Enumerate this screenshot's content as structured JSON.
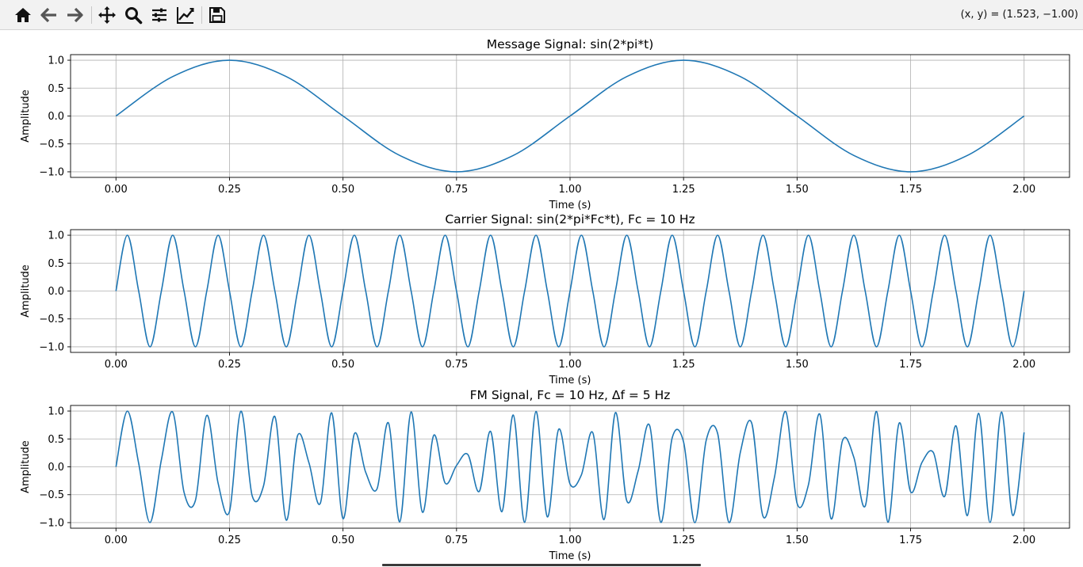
{
  "toolbar": {
    "buttons": [
      {
        "name": "home-icon",
        "tooltip": "Reset original view"
      },
      {
        "name": "back-icon",
        "tooltip": "Back to previous view"
      },
      {
        "name": "forward-icon",
        "tooltip": "Forward to next view"
      },
      {
        "name": "pan-icon",
        "tooltip": "Pan axes"
      },
      {
        "name": "zoom-icon",
        "tooltip": "Zoom to rectangle"
      },
      {
        "name": "subplots-icon",
        "tooltip": "Configure subplots"
      },
      {
        "name": "edit-axes-icon",
        "tooltip": "Edit axis, curve and image parameters"
      },
      {
        "name": "save-icon",
        "tooltip": "Save the figure"
      }
    ],
    "coords": "(x, y) = (1.523, −1.00)"
  },
  "chart_data": [
    {
      "type": "line",
      "title": "Message Signal: sin(2*pi*t)",
      "xlabel": "Time (s)",
      "ylabel": "Amplitude",
      "xlim": [
        -0.1,
        2.1
      ],
      "ylim": [
        -1.1,
        1.1
      ],
      "xticks": [
        "0.00",
        "0.25",
        "0.50",
        "0.75",
        "1.00",
        "1.25",
        "1.50",
        "1.75",
        "2.00"
      ],
      "yticks": [
        "1.0",
        "0.5",
        "0.0",
        "−0.5",
        "−1.0"
      ],
      "grid": true,
      "series": [
        {
          "color": "#1f77b4",
          "x": [
            0,
            0.125,
            0.25,
            0.375,
            0.5,
            0.625,
            0.75,
            0.875,
            1.0,
            1.125,
            1.25,
            1.375,
            1.5,
            1.625,
            1.75,
            1.875,
            2.0
          ],
          "values": [
            0,
            0.707,
            1.0,
            0.707,
            0,
            -0.707,
            -1.0,
            -0.707,
            0,
            0.707,
            1.0,
            0.707,
            0,
            -0.707,
            -1.0,
            -0.707,
            0
          ]
        }
      ]
    },
    {
      "type": "line",
      "title": "Carrier Signal: sin(2*pi*Fc*t), Fc = 10 Hz",
      "xlabel": "Time (s)",
      "ylabel": "Amplitude",
      "xlim": [
        -0.1,
        2.1
      ],
      "ylim": [
        -1.1,
        1.1
      ],
      "xticks": [
        "0.00",
        "0.25",
        "0.50",
        "0.75",
        "1.00",
        "1.25",
        "1.50",
        "1.75",
        "2.00"
      ],
      "yticks": [
        "1.0",
        "0.5",
        "0.0",
        "−0.5",
        "−1.0"
      ],
      "grid": true,
      "series": [
        {
          "color": "#1f77b4",
          "x": [
            0,
            0.025,
            0.05,
            0.075,
            0.1,
            0.125,
            0.15,
            0.175,
            0.2,
            0.225,
            0.25,
            0.275,
            0.3,
            0.325,
            0.35,
            0.375,
            0.4,
            0.425,
            0.45,
            0.475,
            0.5,
            0.525,
            0.55,
            0.575,
            0.6,
            0.625,
            0.65,
            0.675,
            0.7,
            0.725,
            0.75,
            0.775,
            0.8,
            0.825,
            0.85,
            0.875,
            0.9,
            0.925,
            0.95,
            0.975,
            1.0,
            1.025,
            1.05,
            1.075,
            1.1,
            1.125,
            1.15,
            1.175,
            1.2,
            1.225,
            1.25,
            1.275,
            1.3,
            1.325,
            1.35,
            1.375,
            1.4,
            1.425,
            1.45,
            1.475,
            1.5,
            1.525,
            1.55,
            1.575,
            1.6,
            1.625,
            1.65,
            1.675,
            1.7,
            1.725,
            1.75,
            1.775,
            1.8,
            1.825,
            1.85,
            1.875,
            1.9,
            1.925,
            1.95,
            1.975,
            2.0
          ],
          "values": [
            0,
            1,
            0,
            -1,
            0,
            1,
            0,
            -1,
            0,
            1,
            0,
            -1,
            0,
            1,
            0,
            -1,
            0,
            1,
            0,
            -1,
            0,
            1,
            0,
            -1,
            0,
            1,
            0,
            -1,
            0,
            1,
            0,
            -1,
            0,
            1,
            0,
            -1,
            0,
            1,
            0,
            -1,
            0,
            1,
            0,
            -1,
            0,
            1,
            0,
            -1,
            0,
            1,
            0,
            -1,
            0,
            1,
            0,
            -1,
            0,
            1,
            0,
            -1,
            0,
            1,
            0,
            -1,
            0,
            1,
            0,
            -1,
            0,
            1,
            0,
            -1,
            0,
            1,
            0,
            -1,
            0,
            1,
            0,
            -1,
            0
          ]
        }
      ]
    },
    {
      "type": "line",
      "title": "FM Signal, Fc = 10 Hz, Δf = 5 Hz",
      "xlabel": "Time (s)",
      "ylabel": "Amplitude",
      "xlim": [
        -0.1,
        2.1
      ],
      "ylim": [
        -1.1,
        1.1
      ],
      "xticks": [
        "0.00",
        "0.25",
        "0.50",
        "0.75",
        "1.00",
        "1.25",
        "1.50",
        "1.75",
        "2.00"
      ],
      "yticks": [
        "1.0",
        "0.5",
        "0.0",
        "−0.5",
        "−1.0"
      ],
      "grid": true,
      "series": [
        {
          "color": "#1f77b4",
          "x": [
            0,
            0.025,
            0.05,
            0.075,
            0.1,
            0.125,
            0.15,
            0.175,
            0.2,
            0.225,
            0.25,
            0.275,
            0.3,
            0.325,
            0.35,
            0.375,
            0.4,
            0.425,
            0.45,
            0.475,
            0.5,
            0.525,
            0.55,
            0.575,
            0.6,
            0.625,
            0.65,
            0.675,
            0.7,
            0.725,
            0.75,
            0.775,
            0.8,
            0.825,
            0.85,
            0.875,
            0.9,
            0.925,
            0.95,
            0.975,
            1.0,
            1.025,
            1.05,
            1.075,
            1.1,
            1.125,
            1.15,
            1.175,
            1.2,
            1.225,
            1.25,
            1.275,
            1.3,
            1.325,
            1.35,
            1.375,
            1.4,
            1.425,
            1.45,
            1.475,
            1.5,
            1.525,
            1.55,
            1.575,
            1.6,
            1.625,
            1.65,
            1.675,
            1.7,
            1.725,
            1.75,
            1.775,
            1.8,
            1.825,
            1.85,
            1.875,
            1.9,
            1.925,
            1.95,
            1.975,
            2.0
          ],
          "values": [
            0,
            0.998,
            0.063,
            -0.998,
            0.125,
            0.98,
            -0.459,
            -0.601,
            0.922,
            -0.296,
            -0.8,
            0.996,
            -0.52,
            -0.341,
            0.901,
            -0.956,
            0.56,
            0.073,
            -0.653,
            0.968,
            -0.928,
            0.592,
            -0.099,
            -0.393,
            0.788,
            -0.986,
            0.984,
            -0.814,
            0.567,
            -0.292,
            0.024,
            0.22,
            -0.441,
            0.635,
            -0.804,
            0.929,
            -0.996,
            0.993,
            -0.897,
            0.673,
            -0.309,
            -0.144,
            0.613,
            -0.944,
            0.973,
            -0.609,
            -0.073,
            0.746,
            -0.995,
            0.52,
            0.446,
            -1.0,
            0.48,
            0.6,
            -0.997,
            0.258,
            0.785,
            -0.886,
            -0.193,
            0.989,
            -0.653,
            -0.322,
            0.944,
            -0.932,
            0.468,
            0.171,
            -0.704,
            0.992,
            -0.992,
            0.786,
            -0.447,
            0.078,
            0.258,
            -0.531,
            0.734,
            -0.874,
            0.958,
            -0.997,
            0.981,
            -0.872,
            0.617
          ]
        }
      ]
    }
  ]
}
